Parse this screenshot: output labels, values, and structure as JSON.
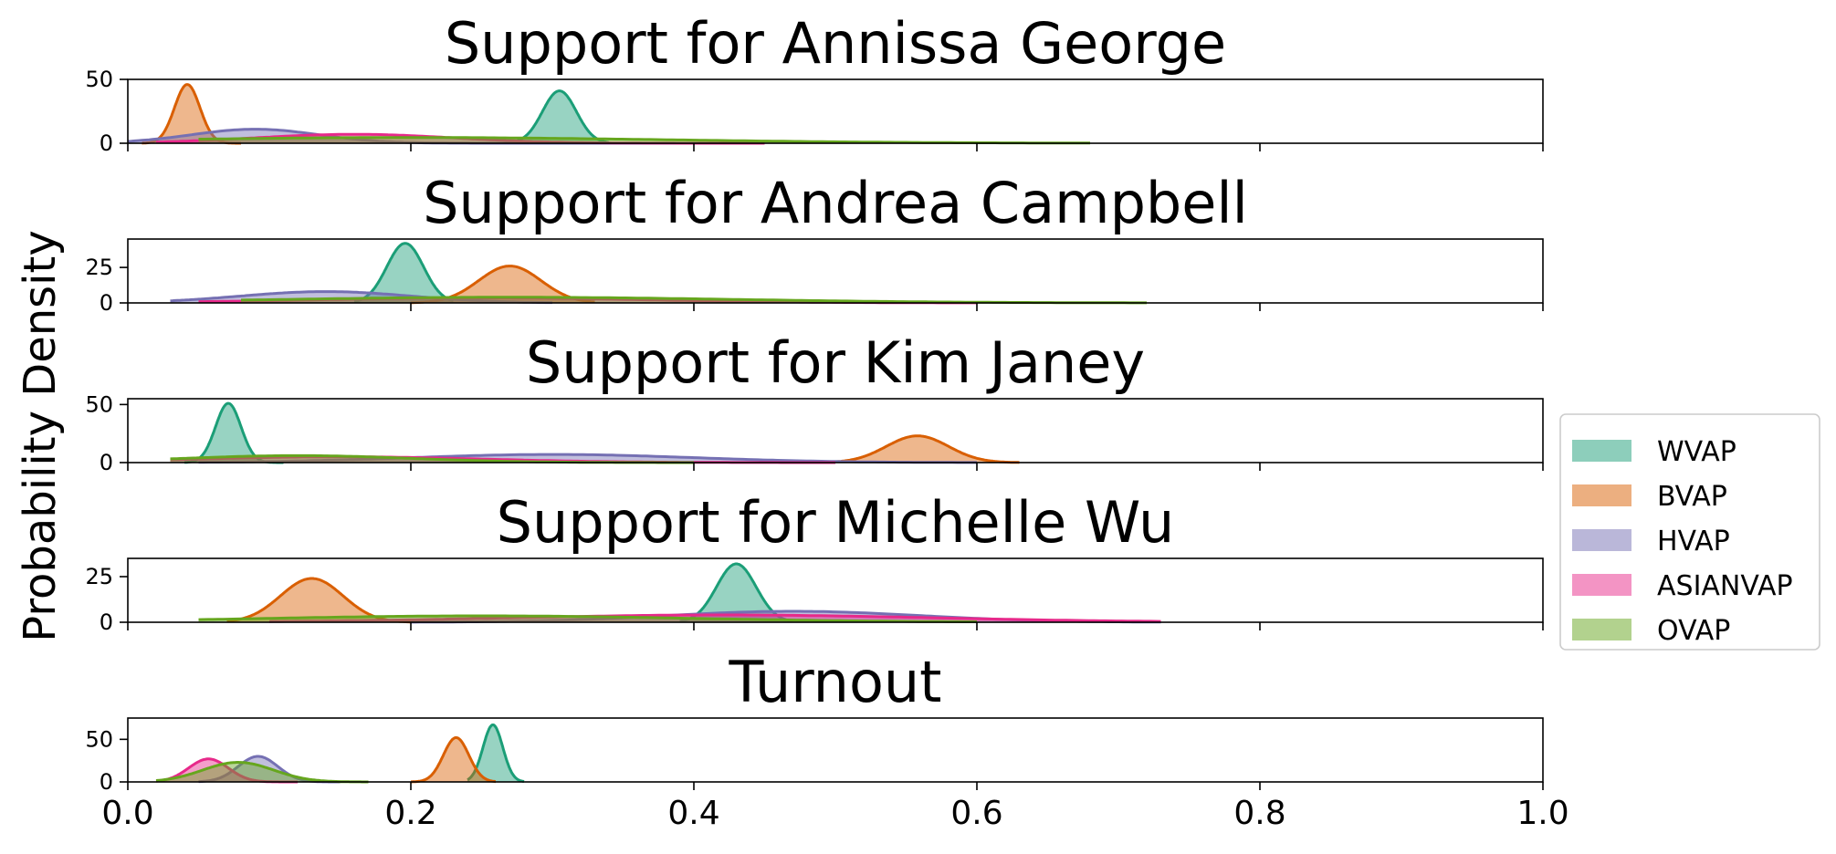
{
  "chart_data": {
    "type": "area",
    "ylabel": "Probability Density",
    "xlim": [
      0,
      1
    ],
    "x_ticks": [
      0.0,
      0.2,
      0.4,
      0.6,
      0.8,
      1.0
    ],
    "x_tick_labels": [
      "0.0",
      "0.2",
      "0.4",
      "0.6",
      "0.8",
      "1.0"
    ],
    "legend": {
      "placement": "right",
      "entries": [
        {
          "name": "WVAP",
          "color": "#1b9e77"
        },
        {
          "name": "BVAP",
          "color": "#d95f02"
        },
        {
          "name": "HVAP",
          "color": "#7570b3"
        },
        {
          "name": "ASIANVAP",
          "color": "#e7298a"
        },
        {
          "name": "OVAP",
          "color": "#66a61e"
        }
      ]
    },
    "panels": [
      {
        "title": "Support for Annissa George",
        "ylim": [
          0,
          50
        ],
        "y_ticks": [
          0,
          50
        ],
        "y_tick_labels": [
          "0",
          "50"
        ],
        "series": [
          {
            "name": "WVAP",
            "color": "#1b9e77",
            "peak": 0.305,
            "height": 41,
            "spread": 0.012,
            "range": [
              0.27,
              0.34
            ]
          },
          {
            "name": "BVAP",
            "color": "#d95f02",
            "peak": 0.042,
            "height": 46,
            "spread": 0.009,
            "range": [
              0.01,
              0.08
            ]
          },
          {
            "name": "HVAP",
            "color": "#7570b3",
            "peak": 0.09,
            "height": 11,
            "spread": 0.045,
            "range": [
              0.0,
              0.4
            ]
          },
          {
            "name": "ASIANVAP",
            "color": "#e7298a",
            "peak": 0.16,
            "height": 7,
            "spread": 0.07,
            "range": [
              0.02,
              0.45
            ]
          },
          {
            "name": "OVAP",
            "color": "#66a61e",
            "peak": 0.2,
            "height": 4.5,
            "spread": 0.18,
            "range": [
              0.05,
              0.68
            ]
          }
        ]
      },
      {
        "title": "Support for Andrea Campbell",
        "ylim": [
          0,
          45
        ],
        "y_ticks": [
          0,
          25
        ],
        "y_tick_labels": [
          "0",
          "25"
        ],
        "series": [
          {
            "name": "WVAP",
            "color": "#1b9e77",
            "peak": 0.196,
            "height": 42,
            "spread": 0.013,
            "range": [
              0.16,
              0.23
            ]
          },
          {
            "name": "BVAP",
            "color": "#d95f02",
            "peak": 0.27,
            "height": 26,
            "spread": 0.022,
            "range": [
              0.2,
              0.33
            ]
          },
          {
            "name": "HVAP",
            "color": "#7570b3",
            "peak": 0.14,
            "height": 8,
            "spread": 0.06,
            "range": [
              0.03,
              0.3
            ]
          },
          {
            "name": "ASIANVAP",
            "color": "#e7298a",
            "peak": 0.25,
            "height": 3.5,
            "spread": 0.12,
            "range": [
              0.05,
              0.6
            ]
          },
          {
            "name": "OVAP",
            "color": "#66a61e",
            "peak": 0.27,
            "height": 4,
            "spread": 0.16,
            "range": [
              0.08,
              0.72
            ]
          }
        ]
      },
      {
        "title": "Support for Kim Janey",
        "ylim": [
          0,
          55
        ],
        "y_ticks": [
          0,
          50
        ],
        "y_tick_labels": [
          "0",
          "50"
        ],
        "series": [
          {
            "name": "WVAP",
            "color": "#1b9e77",
            "peak": 0.071,
            "height": 51,
            "spread": 0.009,
            "range": [
              0.04,
              0.11
            ]
          },
          {
            "name": "BVAP",
            "color": "#d95f02",
            "peak": 0.558,
            "height": 23,
            "spread": 0.022,
            "range": [
              0.49,
              0.63
            ]
          },
          {
            "name": "HVAP",
            "color": "#7570b3",
            "peak": 0.3,
            "height": 7,
            "spread": 0.1,
            "range": [
              0.05,
              0.6
            ]
          },
          {
            "name": "ASIANVAP",
            "color": "#e7298a",
            "peak": 0.15,
            "height": 5,
            "spread": 0.1,
            "range": [
              0.03,
              0.5
            ]
          },
          {
            "name": "OVAP",
            "color": "#66a61e",
            "peak": 0.12,
            "height": 6,
            "spread": 0.08,
            "range": [
              0.03,
              0.4
            ]
          }
        ]
      },
      {
        "title": "Support for Michelle Wu",
        "ylim": [
          0,
          35
        ],
        "y_ticks": [
          0,
          25
        ],
        "y_tick_labels": [
          "0",
          "25"
        ],
        "series": [
          {
            "name": "WVAP",
            "color": "#1b9e77",
            "peak": 0.43,
            "height": 32,
            "spread": 0.014,
            "range": [
              0.39,
              0.47
            ]
          },
          {
            "name": "BVAP",
            "color": "#d95f02",
            "peak": 0.13,
            "height": 24,
            "spread": 0.022,
            "range": [
              0.07,
              0.2
            ]
          },
          {
            "name": "HVAP",
            "color": "#7570b3",
            "peak": 0.47,
            "height": 6,
            "spread": 0.09,
            "range": [
              0.2,
              0.73
            ]
          },
          {
            "name": "ASIANVAP",
            "color": "#e7298a",
            "peak": 0.42,
            "height": 4,
            "spread": 0.15,
            "range": [
              0.1,
              0.73
            ]
          },
          {
            "name": "OVAP",
            "color": "#66a61e",
            "peak": 0.25,
            "height": 3.5,
            "spread": 0.15,
            "range": [
              0.05,
              0.6
            ]
          }
        ]
      },
      {
        "title": "Turnout",
        "ylim": [
          0,
          75
        ],
        "y_ticks": [
          0,
          50
        ],
        "y_tick_labels": [
          "0",
          "50"
        ],
        "series": [
          {
            "name": "WVAP",
            "color": "#1b9e77",
            "peak": 0.258,
            "height": 67,
            "spread": 0.007,
            "range": [
              0.24,
              0.28
            ]
          },
          {
            "name": "BVAP",
            "color": "#d95f02",
            "peak": 0.232,
            "height": 52,
            "spread": 0.009,
            "range": [
              0.2,
              0.26
            ]
          },
          {
            "name": "HVAP",
            "color": "#7570b3",
            "peak": 0.092,
            "height": 30,
            "spread": 0.014,
            "range": [
              0.05,
              0.15
            ]
          },
          {
            "name": "ASIANVAP",
            "color": "#e7298a",
            "peak": 0.057,
            "height": 27,
            "spread": 0.014,
            "range": [
              0.02,
              0.12
            ]
          },
          {
            "name": "OVAP",
            "color": "#66a61e",
            "peak": 0.078,
            "height": 23,
            "spread": 0.025,
            "range": [
              0.02,
              0.17
            ]
          }
        ]
      }
    ]
  }
}
